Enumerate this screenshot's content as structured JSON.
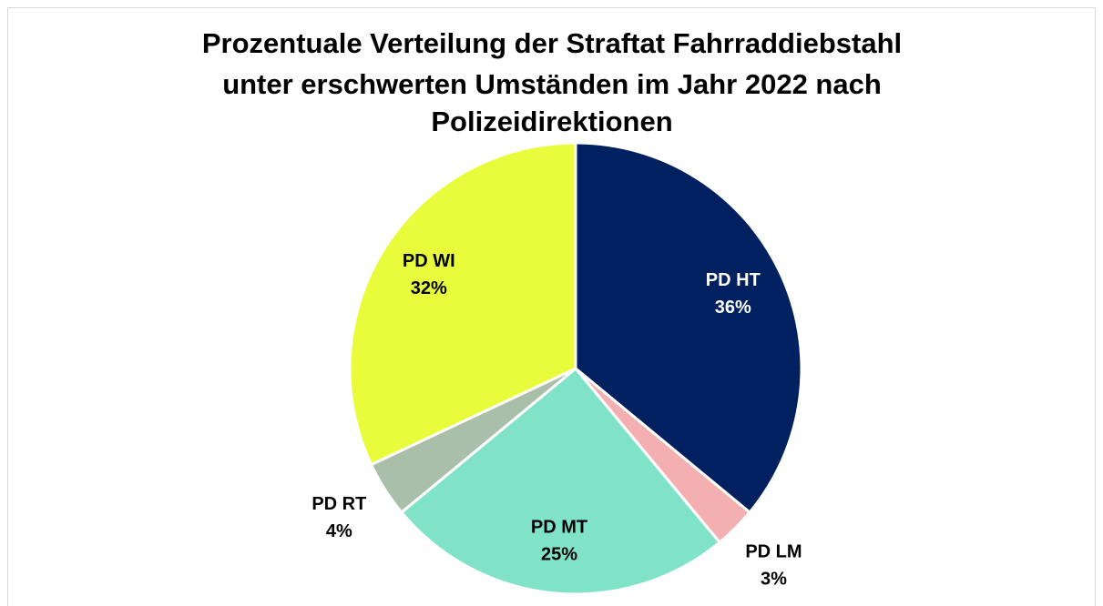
{
  "chart_data": {
    "type": "pie",
    "title": [
      "Prozentuale Verteilung der Straftat Fahrraddiebstahl",
      "unter erschwerten Umständen im Jahr 2022 nach",
      "Polizeidirektionen"
    ],
    "categories": [
      "PD HT",
      "PD LM",
      "PD MT",
      "PD RT",
      "PD WI"
    ],
    "values": [
      36,
      3,
      25,
      4,
      32
    ],
    "value_labels": [
      "36%",
      "3%",
      "25%",
      "4%",
      "32%"
    ],
    "colors": [
      "#002060",
      "#f4b0b0",
      "#80e3c8",
      "#a9bfa9",
      "#e8fc3c"
    ]
  }
}
